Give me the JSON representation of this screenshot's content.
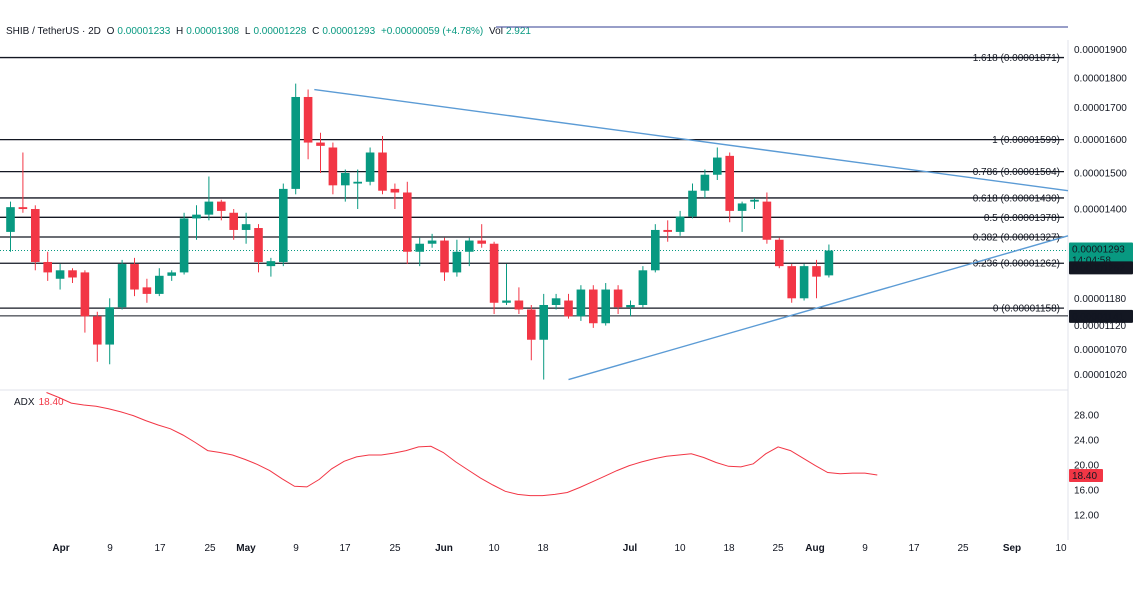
{
  "header": {
    "symbol": "SHIB / TetherUS · 2D",
    "o_label": "O",
    "o_value": "0.00001233",
    "h_label": "H",
    "h_value": "0.00001308",
    "l_label": "L",
    "l_value": "0.00001228",
    "c_label": "C",
    "c_value": "0.00001293",
    "change": "+0.00000059 (+4.78%)",
    "vol_label": "Vol",
    "vol_value": "2.921"
  },
  "colors": {
    "up": "#089981",
    "down": "#f23645",
    "trend": "#5b9bd5",
    "adx": "#f23645",
    "fib": "#131722",
    "grid": "#ffffff"
  },
  "chart_data": [
    {
      "type": "candlestick",
      "title": "SHIB / TetherUS · 2D",
      "y_scale": "log",
      "ylim": [
        9.9e-06,
        1.935e-05
      ],
      "y_ticks": [
        "0.00001900",
        "0.00001800",
        "0.00001700",
        "0.00001600",
        "0.00001500",
        "0.00001400",
        "0.00001180",
        "0.00001120",
        "0.00001070",
        "0.00001020"
      ],
      "x_ticks": [
        "Apr",
        "9",
        "17",
        "25",
        "May",
        "9",
        "17",
        "25",
        "Jun",
        "10",
        "18",
        "Jul",
        "10",
        "18",
        "25",
        "Aug",
        "9",
        "17",
        "25",
        "Sep",
        "10"
      ],
      "start_date": "2024-03-23",
      "candles": [
        {
          "o": 1.34e-05,
          "h": 1.42e-05,
          "l": 1.29e-05,
          "c": 1.405e-05
        },
        {
          "o": 1.405e-05,
          "h": 1.56e-05,
          "l": 1.39e-05,
          "c": 1.4e-05
        },
        {
          "o": 1.4e-05,
          "h": 1.41e-05,
          "l": 1.245e-05,
          "c": 1.265e-05
        },
        {
          "o": 1.265e-05,
          "h": 1.29e-05,
          "l": 1.22e-05,
          "c": 1.24e-05
        },
        {
          "o": 1.225e-05,
          "h": 1.26e-05,
          "l": 1.2e-05,
          "c": 1.245e-05
        },
        {
          "o": 1.245e-05,
          "h": 1.25e-05,
          "l": 1.215e-05,
          "c": 1.228e-05
        },
        {
          "o": 1.24e-05,
          "h": 1.245e-05,
          "l": 1.105e-05,
          "c": 1.14e-05
        },
        {
          "o": 1.14e-05,
          "h": 1.15e-05,
          "l": 1.045e-05,
          "c": 1.08e-05
        },
        {
          "o": 1.08e-05,
          "h": 1.18e-05,
          "l": 1.04e-05,
          "c": 1.16e-05
        },
        {
          "o": 1.16e-05,
          "h": 1.27e-05,
          "l": 1.155e-05,
          "c": 1.26e-05
        },
        {
          "o": 1.26e-05,
          "h": 1.275e-05,
          "l": 1.185e-05,
          "c": 1.2e-05
        },
        {
          "o": 1.205e-05,
          "h": 1.225e-05,
          "l": 1.17e-05,
          "c": 1.19e-05
        },
        {
          "o": 1.19e-05,
          "h": 1.25e-05,
          "l": 1.185e-05,
          "c": 1.232e-05
        },
        {
          "o": 1.232e-05,
          "h": 1.245e-05,
          "l": 1.22e-05,
          "c": 1.24e-05
        },
        {
          "o": 1.24e-05,
          "h": 1.39e-05,
          "l": 1.235e-05,
          "c": 1.375e-05
        },
        {
          "o": 1.375e-05,
          "h": 1.41e-05,
          "l": 1.32e-05,
          "c": 1.385e-05
        },
        {
          "o": 1.385e-05,
          "h": 1.49e-05,
          "l": 1.37e-05,
          "c": 1.42e-05
        },
        {
          "o": 1.42e-05,
          "h": 1.425e-05,
          "l": 1.37e-05,
          "c": 1.395e-05
        },
        {
          "o": 1.39e-05,
          "h": 1.4e-05,
          "l": 1.32e-05,
          "c": 1.345e-05
        },
        {
          "o": 1.345e-05,
          "h": 1.39e-05,
          "l": 1.31e-05,
          "c": 1.36e-05
        },
        {
          "o": 1.35e-05,
          "h": 1.36e-05,
          "l": 1.24e-05,
          "c": 1.265e-05
        },
        {
          "o": 1.255e-05,
          "h": 1.275e-05,
          "l": 1.23e-05,
          "c": 1.267e-05
        },
        {
          "o": 1.265e-05,
          "h": 1.47e-05,
          "l": 1.255e-05,
          "c": 1.455e-05
        },
        {
          "o": 1.455e-05,
          "h": 1.78e-05,
          "l": 1.44e-05,
          "c": 1.735e-05
        },
        {
          "o": 1.735e-05,
          "h": 1.76e-05,
          "l": 1.54e-05,
          "c": 1.59e-05
        },
        {
          "o": 1.59e-05,
          "h": 1.62e-05,
          "l": 1.5e-05,
          "c": 1.58e-05
        },
        {
          "o": 1.575e-05,
          "h": 1.59e-05,
          "l": 1.44e-05,
          "c": 1.465e-05
        },
        {
          "o": 1.465e-05,
          "h": 1.51e-05,
          "l": 1.42e-05,
          "c": 1.5e-05
        },
        {
          "o": 1.47e-05,
          "h": 1.51e-05,
          "l": 1.4e-05,
          "c": 1.475e-05
        },
        {
          "o": 1.475e-05,
          "h": 1.575e-05,
          "l": 1.465e-05,
          "c": 1.56e-05
        },
        {
          "o": 1.56e-05,
          "h": 1.61e-05,
          "l": 1.44e-05,
          "c": 1.45e-05
        },
        {
          "o": 1.455e-05,
          "h": 1.47e-05,
          "l": 1.4e-05,
          "c": 1.445e-05
        },
        {
          "o": 1.445e-05,
          "h": 1.475e-05,
          "l": 1.26e-05,
          "c": 1.29e-05
        },
        {
          "o": 1.29e-05,
          "h": 1.325e-05,
          "l": 1.255e-05,
          "c": 1.31e-05
        },
        {
          "o": 1.31e-05,
          "h": 1.335e-05,
          "l": 1.3e-05,
          "c": 1.318e-05
        },
        {
          "o": 1.318e-05,
          "h": 1.325e-05,
          "l": 1.22e-05,
          "c": 1.24e-05
        },
        {
          "o": 1.24e-05,
          "h": 1.32e-05,
          "l": 1.23e-05,
          "c": 1.29e-05
        },
        {
          "o": 1.29e-05,
          "h": 1.325e-05,
          "l": 1.255e-05,
          "c": 1.318e-05
        },
        {
          "o": 1.318e-05,
          "h": 1.36e-05,
          "l": 1.3e-05,
          "c": 1.31e-05
        },
        {
          "o": 1.31e-05,
          "h": 1.315e-05,
          "l": 1.145e-05,
          "c": 1.17e-05
        },
        {
          "o": 1.17e-05,
          "h": 1.26e-05,
          "l": 1.165e-05,
          "c": 1.175e-05
        },
        {
          "o": 1.175e-05,
          "h": 1.205e-05,
          "l": 1.145e-05,
          "c": 1.155e-05
        },
        {
          "o": 1.155e-05,
          "h": 1.165e-05,
          "l": 1.048e-05,
          "c": 1.09e-05
        },
        {
          "o": 1.09e-05,
          "h": 1.19e-05,
          "l": 1.01e-05,
          "c": 1.165e-05
        },
        {
          "o": 1.165e-05,
          "h": 1.19e-05,
          "l": 1.155e-05,
          "c": 1.18e-05
        },
        {
          "o": 1.175e-05,
          "h": 1.19e-05,
          "l": 1.135e-05,
          "c": 1.14e-05
        },
        {
          "o": 1.14e-05,
          "h": 1.21e-05,
          "l": 1.13e-05,
          "c": 1.2e-05
        },
        {
          "o": 1.2e-05,
          "h": 1.21e-05,
          "l": 1.115e-05,
          "c": 1.125e-05
        },
        {
          "o": 1.125e-05,
          "h": 1.215e-05,
          "l": 1.12e-05,
          "c": 1.2e-05
        },
        {
          "o": 1.2e-05,
          "h": 1.21e-05,
          "l": 1.145e-05,
          "c": 1.16e-05
        },
        {
          "o": 1.16e-05,
          "h": 1.175e-05,
          "l": 1.14e-05,
          "c": 1.165e-05
        },
        {
          "o": 1.165e-05,
          "h": 1.255e-05,
          "l": 1.16e-05,
          "c": 1.245e-05
        },
        {
          "o": 1.245e-05,
          "h": 1.36e-05,
          "l": 1.24e-05,
          "c": 1.345e-05
        },
        {
          "o": 1.345e-05,
          "h": 1.37e-05,
          "l": 1.315e-05,
          "c": 1.34e-05
        },
        {
          "o": 1.34e-05,
          "h": 1.395e-05,
          "l": 1.33e-05,
          "c": 1.38e-05
        },
        {
          "o": 1.38e-05,
          "h": 1.47e-05,
          "l": 1.375e-05,
          "c": 1.45e-05
        },
        {
          "o": 1.45e-05,
          "h": 1.51e-05,
          "l": 1.43e-05,
          "c": 1.495e-05
        },
        {
          "o": 1.495e-05,
          "h": 1.575e-05,
          "l": 1.48e-05,
          "c": 1.545e-05
        },
        {
          "o": 1.55e-05,
          "h": 1.56e-05,
          "l": 1.365e-05,
          "c": 1.395e-05
        },
        {
          "o": 1.395e-05,
          "h": 1.42e-05,
          "l": 1.34e-05,
          "c": 1.415e-05
        },
        {
          "o": 1.42e-05,
          "h": 1.43e-05,
          "l": 1.4e-05,
          "c": 1.425e-05
        },
        {
          "o": 1.42e-05,
          "h": 1.445e-05,
          "l": 1.31e-05,
          "c": 1.32e-05
        },
        {
          "o": 1.32e-05,
          "h": 1.325e-05,
          "l": 1.25e-05,
          "c": 1.255e-05
        },
        {
          "o": 1.255e-05,
          "h": 1.26e-05,
          "l": 1.17e-05,
          "c": 1.18e-05
        },
        {
          "o": 1.18e-05,
          "h": 1.26e-05,
          "l": 1.175e-05,
          "c": 1.255e-05
        },
        {
          "o": 1.255e-05,
          "h": 1.27e-05,
          "l": 1.18e-05,
          "c": 1.23e-05
        },
        {
          "o": 1.233e-05,
          "h": 1.308e-05,
          "l": 1.228e-05,
          "c": 1.293e-05
        }
      ],
      "fib_levels": [
        {
          "label": "1.618 (0.00001871)",
          "value": 1.871e-05
        },
        {
          "label": "1 (0.00001599)",
          "value": 1.599e-05
        },
        {
          "label": "0.786 (0.00001504)",
          "value": 1.504e-05
        },
        {
          "label": "0.618 (0.00001430)",
          "value": 1.43e-05
        },
        {
          "label": "0.5 (0.00001378)",
          "value": 1.378e-05
        },
        {
          "label": "0.382 (0.00001327)",
          "value": 1.327e-05
        },
        {
          "label": "0.236 (0.00001262)",
          "value": 1.262e-05
        },
        {
          "label": "0 (0.00001158)",
          "value": 1.158e-05
        }
      ],
      "extra_lines": [
        1.141e-05
      ],
      "trend_lines": [
        {
          "from": {
            "date": "2024-05-11",
            "price": 1.76e-05
          },
          "to": {
            "date": "2024-09-15",
            "price": 1.45e-05
          }
        },
        {
          "from": {
            "date": "2024-06-21",
            "price": 1.01e-05
          },
          "to": {
            "date": "2024-09-15",
            "price": 1.33e-05
          }
        }
      ],
      "price_tags": {
        "last": "0.00001293",
        "countdown": "14:04:58",
        "tag2": "0.00001252",
        "tag3": "0.00001141"
      }
    },
    {
      "type": "line",
      "title": "ADX",
      "value_label": "18.40",
      "ylim": [
        8,
        32
      ],
      "y_ticks": [
        "28.00",
        "24.00",
        "20.00",
        "16.00",
        "12.00"
      ],
      "series": [
        {
          "name": "ADX",
          "values": [
            31.6,
            30.8,
            29.9,
            29.6,
            29.4,
            29.0,
            28.5,
            27.9,
            27.1,
            26.4,
            25.8,
            24.8,
            23.6,
            22.3,
            22.0,
            21.6,
            20.9,
            20.1,
            19.1,
            17.8,
            16.6,
            16.5,
            17.7,
            19.4,
            20.6,
            21.3,
            21.6,
            21.6,
            21.9,
            22.3,
            22.9,
            23.0,
            22.0,
            20.5,
            19.2,
            17.9,
            16.8,
            15.8,
            15.3,
            15.1,
            15.1,
            15.3,
            15.6,
            16.4,
            17.3,
            18.2,
            19.1,
            19.9,
            20.5,
            21.0,
            21.4,
            21.6,
            21.8,
            21.2,
            20.4,
            19.8,
            19.7,
            20.2,
            21.8,
            22.9,
            22.3,
            21.1,
            19.9,
            18.8,
            18.6,
            18.7,
            18.7,
            18.4
          ]
        }
      ]
    }
  ]
}
